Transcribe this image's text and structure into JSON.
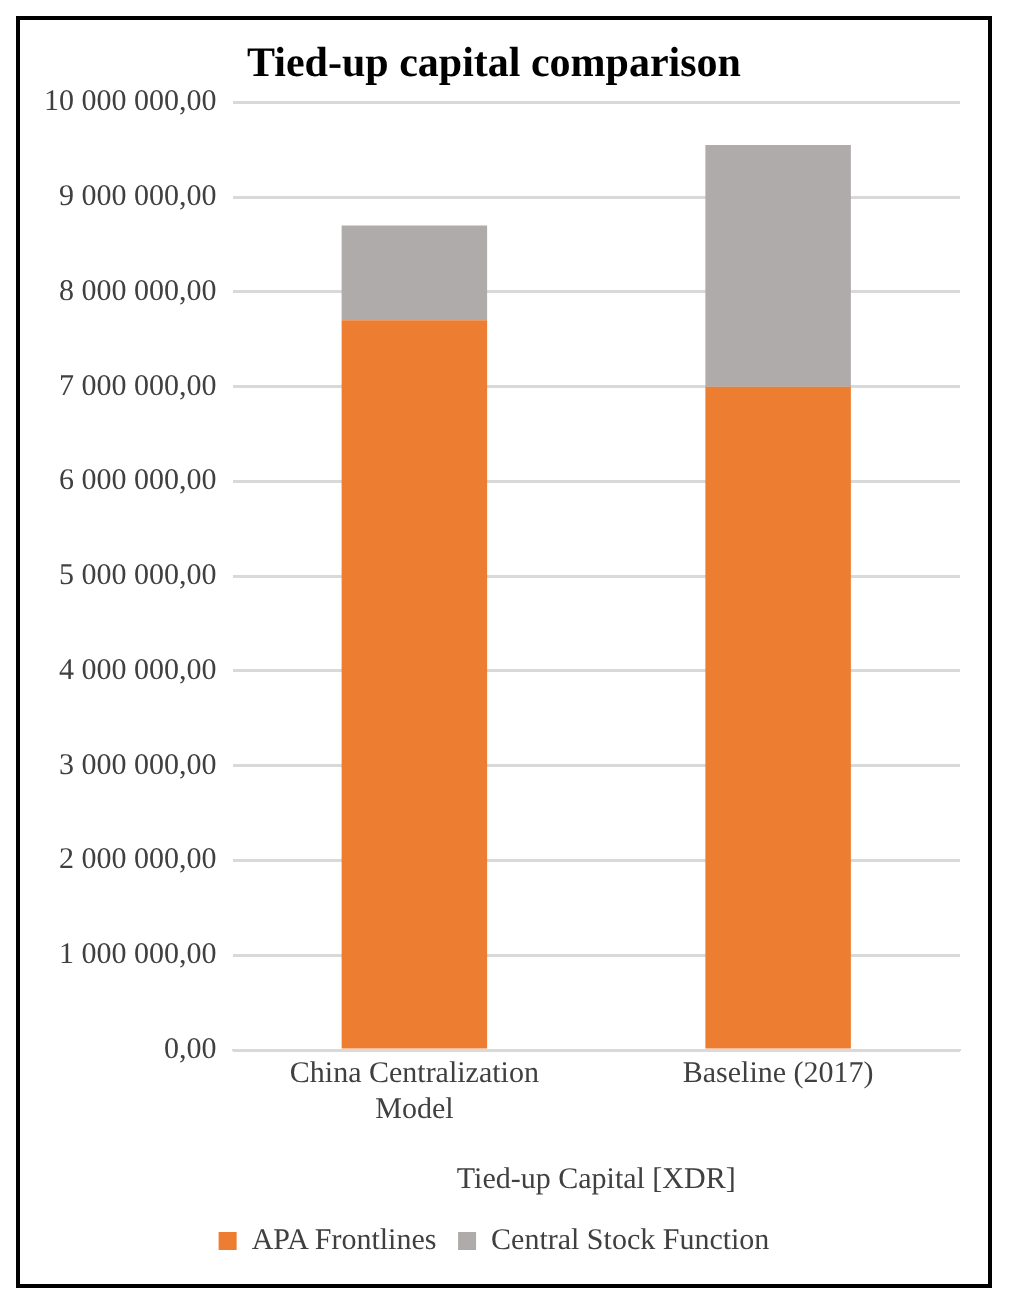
{
  "chart_data": {
    "type": "bar",
    "title": "Tied-up capital comparison",
    "xlabel": "Tied-up Capital [XDR]",
    "categories": [
      "China Centralization Model",
      "Baseline (2017)"
    ],
    "stacked": true,
    "series": [
      {
        "name": "APA Frontlines",
        "color": "#ed7d31",
        "values": [
          7700000,
          7000000
        ]
      },
      {
        "name": "Central Stock Function",
        "color": "#afabab",
        "values": [
          1000000,
          2550000
        ]
      }
    ],
    "ylim": [
      0,
      10000000
    ],
    "yticks": [
      {
        "value": 0,
        "label": "0,00"
      },
      {
        "value": 1000000,
        "label": "1 000 000,00"
      },
      {
        "value": 2000000,
        "label": "2 000 000,00"
      },
      {
        "value": 3000000,
        "label": "3 000 000,00"
      },
      {
        "value": 4000000,
        "label": "4 000 000,00"
      },
      {
        "value": 5000000,
        "label": "5 000 000,00"
      },
      {
        "value": 6000000,
        "label": "6 000 000,00"
      },
      {
        "value": 7000000,
        "label": "7 000 000,00"
      },
      {
        "value": 8000000,
        "label": "8 000 000,00"
      },
      {
        "value": 9000000,
        "label": "9 000 000,00"
      },
      {
        "value": 10000000,
        "label": "10 000 000,00"
      }
    ],
    "grid": "y",
    "legend": "bottom"
  }
}
